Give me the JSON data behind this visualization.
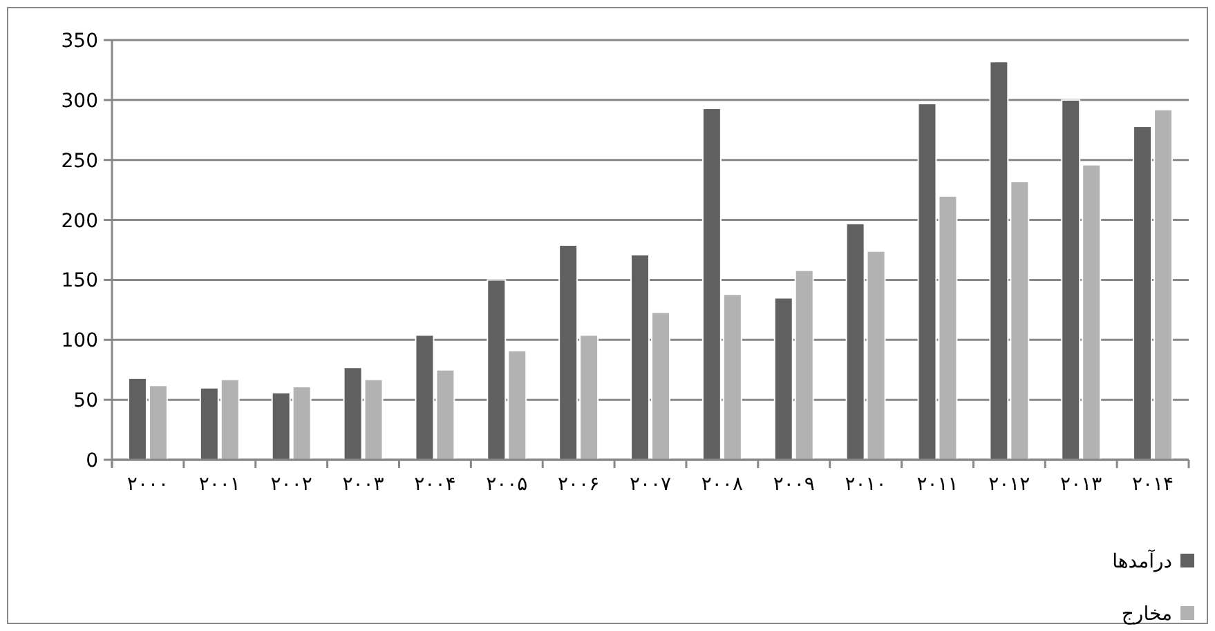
{
  "chart_data": {
    "type": "bar",
    "categories": [
      "۲۰۰۰",
      "۲۰۰۱",
      "۲۰۰۲",
      "۲۰۰۳",
      "۲۰۰۴",
      "۲۰۰۵",
      "۲۰۰۶",
      "۲۰۰۷",
      "۲۰۰۸",
      "۲۰۰۹",
      "۲۰۱۰",
      "۲۰۱۱",
      "۲۰۱۲",
      "۲۰۱۳",
      "۲۰۱۴"
    ],
    "series": [
      {
        "name": "درآمدها",
        "color": "#606060",
        "values": [
          68,
          60,
          56,
          77,
          104,
          150,
          179,
          171,
          293,
          135,
          197,
          297,
          332,
          300,
          278
        ]
      },
      {
        "name": "مخارج",
        "color": "#b2b2b2",
        "values": [
          62,
          67,
          61,
          67,
          75,
          91,
          104,
          123,
          138,
          158,
          174,
          220,
          232,
          246,
          292
        ]
      }
    ],
    "ylim": [
      0,
      350
    ],
    "yticks": [
      0,
      50,
      100,
      150,
      200,
      250,
      300,
      350
    ],
    "grid": "y",
    "legend": "bottom right"
  }
}
